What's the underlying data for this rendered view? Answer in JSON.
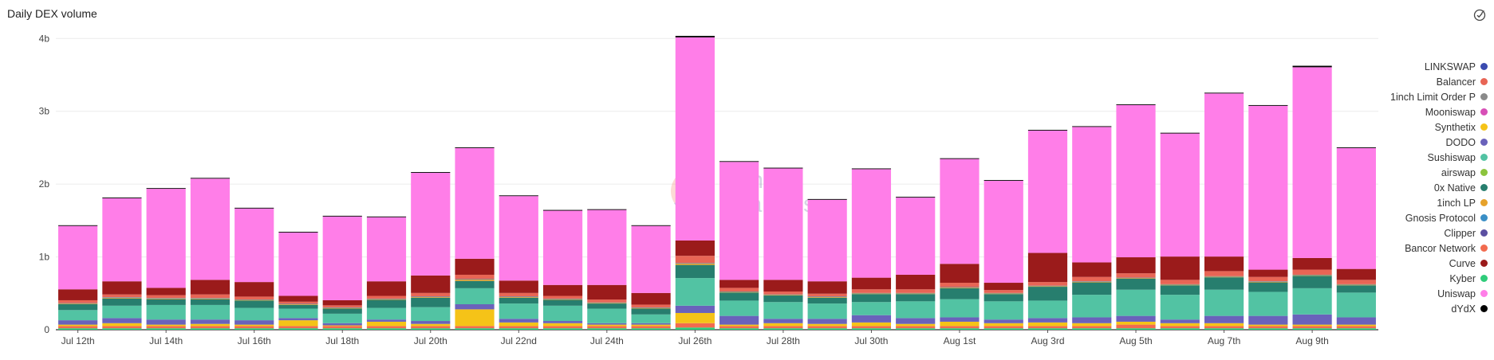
{
  "header": {
    "title": "Daily DEX volume"
  },
  "chart_data": {
    "type": "bar",
    "stacked": true,
    "title": "Daily DEX volume",
    "ylim": [
      0,
      4200000000
    ],
    "y_ticks": [
      0,
      1000000000,
      2000000000,
      3000000000,
      4000000000
    ],
    "y_tick_labels": [
      "0",
      "1b",
      "2b",
      "3b",
      "4b"
    ],
    "x_tick_labels": [
      "Jul 12th",
      "Jul 14th",
      "Jul 16th",
      "Jul 18th",
      "Jul 20th",
      "Jul 22nd",
      "Jul 24th",
      "Jul 26th",
      "Jul 28th",
      "Jul 30th",
      "Aug 1st",
      "Aug 3rd",
      "Aug 5th",
      "Aug 7th",
      "Aug 9th"
    ],
    "x_tick_every": 2,
    "grid": true,
    "legend_position": "right",
    "watermark": "Dune Analytics",
    "categories": [
      "2020-07-12",
      "2020-07-13",
      "2020-07-14",
      "2020-07-15",
      "2020-07-16",
      "2020-07-17",
      "2020-07-18",
      "2020-07-19",
      "2020-07-20",
      "2020-07-21",
      "2020-07-22",
      "2020-07-23",
      "2020-07-24",
      "2020-07-25",
      "2020-07-26",
      "2020-07-27",
      "2020-07-28",
      "2020-07-29",
      "2020-07-30",
      "2020-07-31",
      "2020-08-01",
      "2020-08-02",
      "2020-08-03",
      "2020-08-04",
      "2020-08-05",
      "2020-08-06",
      "2020-08-07",
      "2020-08-08",
      "2020-08-09",
      "2020-08-10"
    ],
    "series": [
      {
        "name": "Kyber",
        "color": "#2fcc7a",
        "values": [
          20,
          20,
          20,
          20,
          20,
          20,
          20,
          20,
          20,
          20,
          20,
          20,
          20,
          20,
          30,
          20,
          20,
          20,
          20,
          20,
          20,
          20,
          20,
          20,
          20,
          20,
          20,
          20,
          20,
          20
        ]
      },
      {
        "name": "Bancor Network",
        "color": "#f26b4f",
        "values": [
          30,
          30,
          30,
          30,
          30,
          30,
          30,
          30,
          30,
          30,
          30,
          30,
          30,
          30,
          60,
          30,
          30,
          30,
          30,
          30,
          30,
          30,
          30,
          30,
          50,
          30,
          30,
          30,
          30,
          30
        ]
      },
      {
        "name": "Synthetix",
        "color": "#f5c318",
        "values": [
          20,
          40,
          20,
          30,
          20,
          80,
          10,
          60,
          30,
          230,
          50,
          40,
          20,
          20,
          140,
          20,
          40,
          30,
          50,
          30,
          60,
          40,
          50,
          40,
          40,
          40,
          40,
          20,
          20,
          20
        ]
      },
      {
        "name": "DODO",
        "color": "#6a62bb",
        "values": [
          60,
          70,
          70,
          60,
          60,
          30,
          30,
          30,
          40,
          70,
          50,
          30,
          20,
          20,
          100,
          120,
          60,
          70,
          100,
          80,
          60,
          50,
          60,
          80,
          80,
          50,
          100,
          120,
          140,
          100
        ]
      },
      {
        "name": "Sushiswap",
        "color": "#52c3a3",
        "values": [
          140,
          170,
          200,
          200,
          170,
          130,
          130,
          160,
          190,
          220,
          210,
          210,
          200,
          120,
          380,
          210,
          230,
          210,
          180,
          230,
          250,
          250,
          240,
          310,
          360,
          340,
          360,
          330,
          360,
          340
        ]
      },
      {
        "name": "0x Native",
        "color": "#277e6e",
        "values": [
          80,
          100,
          80,
          80,
          100,
          50,
          70,
          110,
          130,
          100,
          80,
          80,
          70,
          80,
          180,
          110,
          90,
          80,
          110,
          100,
          150,
          100,
          190,
          170,
          150,
          130,
          170,
          130,
          170,
          100
        ]
      },
      {
        "name": "1inch LP",
        "color": "#e6a22b",
        "values": [
          10,
          10,
          10,
          10,
          10,
          10,
          10,
          10,
          10,
          20,
          10,
          10,
          10,
          10,
          20,
          10,
          10,
          10,
          10,
          10,
          10,
          10,
          10,
          10,
          10,
          10,
          10,
          10,
          10,
          10
        ]
      },
      {
        "name": "Gnosis Protocol",
        "color": "#3a8fc6",
        "values": [
          5,
          5,
          5,
          5,
          5,
          5,
          5,
          5,
          5,
          5,
          5,
          5,
          5,
          5,
          5,
          5,
          5,
          5,
          5,
          5,
          5,
          5,
          5,
          5,
          5,
          5,
          5,
          5,
          5,
          5
        ]
      },
      {
        "name": "Balancer",
        "color": "#e86555",
        "values": [
          40,
          40,
          40,
          50,
          40,
          30,
          30,
          40,
          50,
          60,
          50,
          40,
          40,
          40,
          100,
          50,
          40,
          40,
          50,
          50,
          60,
          40,
          50,
          60,
          60,
          60,
          70,
          60,
          70,
          60
        ]
      },
      {
        "name": "Curve",
        "color": "#9b1b1b",
        "values": [
          150,
          180,
          100,
          200,
          200,
          80,
          70,
          200,
          240,
          220,
          170,
          150,
          200,
          160,
          210,
          110,
          160,
          170,
          160,
          200,
          260,
          100,
          400,
          200,
          220,
          320,
          200,
          100,
          160,
          150
        ]
      },
      {
        "name": "Uniswap",
        "color": "#ff7ee8",
        "values": [
          870,
          1140,
          1360,
          1390,
          1010,
          870,
          1150,
          880,
          1410,
          1520,
          1160,
          1020,
          1030,
          920,
          2790,
          1620,
          1530,
          1120,
          1490,
          1060,
          1440,
          1400,
          1680,
          1860,
          2090,
          1690,
          2240,
          2250,
          2620,
          1660
        ]
      },
      {
        "name": "dYdX",
        "color": "#000000",
        "values": [
          10,
          10,
          10,
          10,
          10,
          10,
          10,
          10,
          10,
          10,
          10,
          10,
          10,
          10,
          20,
          10,
          10,
          10,
          10,
          10,
          10,
          10,
          10,
          10,
          10,
          10,
          10,
          10,
          20,
          10
        ]
      },
      {
        "name": "Clipper",
        "color": "#5b4fa1",
        "values": [
          0,
          0,
          0,
          0,
          0,
          0,
          0,
          0,
          0,
          0,
          0,
          0,
          0,
          0,
          0,
          0,
          0,
          0,
          0,
          0,
          0,
          0,
          0,
          0,
          0,
          0,
          0,
          0,
          0,
          0
        ]
      },
      {
        "name": "airswap",
        "color": "#8cc43d",
        "values": [
          0,
          0,
          0,
          0,
          0,
          0,
          0,
          0,
          0,
          0,
          0,
          0,
          0,
          0,
          0,
          0,
          0,
          0,
          0,
          0,
          0,
          0,
          0,
          0,
          0,
          0,
          0,
          0,
          0,
          0
        ]
      },
      {
        "name": "Mooniswap",
        "color": "#d74fb7",
        "values": [
          0,
          0,
          0,
          0,
          0,
          0,
          0,
          0,
          0,
          0,
          0,
          0,
          0,
          0,
          0,
          0,
          0,
          0,
          0,
          0,
          0,
          0,
          0,
          0,
          0,
          0,
          0,
          0,
          0,
          0
        ]
      },
      {
        "name": "1inch Limit Order P",
        "color": "#8a8a8a",
        "values": [
          0,
          0,
          0,
          0,
          0,
          0,
          0,
          0,
          0,
          0,
          0,
          0,
          0,
          0,
          0,
          0,
          0,
          0,
          0,
          0,
          0,
          0,
          0,
          0,
          0,
          0,
          0,
          0,
          0,
          0
        ]
      },
      {
        "name": "LINKSWAP",
        "color": "#3b4bb0",
        "values": [
          0,
          0,
          0,
          0,
          0,
          0,
          0,
          0,
          0,
          0,
          0,
          0,
          0,
          0,
          0,
          0,
          0,
          0,
          0,
          0,
          0,
          0,
          0,
          0,
          0,
          0,
          0,
          0,
          0,
          0
        ]
      }
    ],
    "value_unit_multiplier": 1000000,
    "legend": [
      {
        "name": "LINKSWAP",
        "color": "#3b4bb0"
      },
      {
        "name": "Balancer",
        "color": "#e86555"
      },
      {
        "name": "1inch Limit Order P",
        "color": "#8a8a8a"
      },
      {
        "name": "Mooniswap",
        "color": "#d74fb7"
      },
      {
        "name": "Synthetix",
        "color": "#f5c318"
      },
      {
        "name": "DODO",
        "color": "#6a62bb"
      },
      {
        "name": "Sushiswap",
        "color": "#52c3a3"
      },
      {
        "name": "airswap",
        "color": "#8cc43d"
      },
      {
        "name": "0x Native",
        "color": "#277e6e"
      },
      {
        "name": "1inch LP",
        "color": "#e6a22b"
      },
      {
        "name": "Gnosis Protocol",
        "color": "#3a8fc6"
      },
      {
        "name": "Clipper",
        "color": "#5b4fa1"
      },
      {
        "name": "Bancor Network",
        "color": "#f26b4f"
      },
      {
        "name": "Curve",
        "color": "#9b1b1b"
      },
      {
        "name": "Kyber",
        "color": "#2fcc7a"
      },
      {
        "name": "Uniswap",
        "color": "#ff7ee8"
      },
      {
        "name": "dYdX",
        "color": "#000000"
      }
    ]
  }
}
